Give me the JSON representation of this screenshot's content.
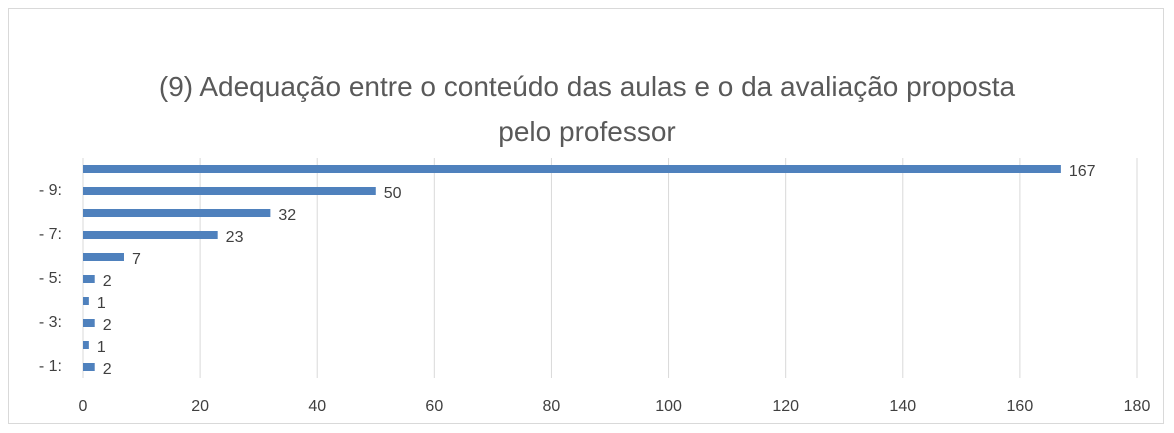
{
  "chart_data": {
    "type": "hbar",
    "title": "(9) Adequação entre o conteúdo das aulas e o da avaliação proposta pelo professor",
    "categories": [
      "- 1:",
      null,
      "- 3:",
      null,
      "- 5:",
      null,
      "- 7:",
      null,
      "- 9:",
      null
    ],
    "values": [
      2,
      1,
      2,
      1,
      2,
      7,
      23,
      32,
      50,
      167
    ],
    "color": "#4f81bd",
    "xlim": [
      0,
      180
    ],
    "xticks": [
      0,
      20,
      40,
      60,
      80,
      100,
      120,
      140,
      160,
      180
    ],
    "grid": true
  }
}
